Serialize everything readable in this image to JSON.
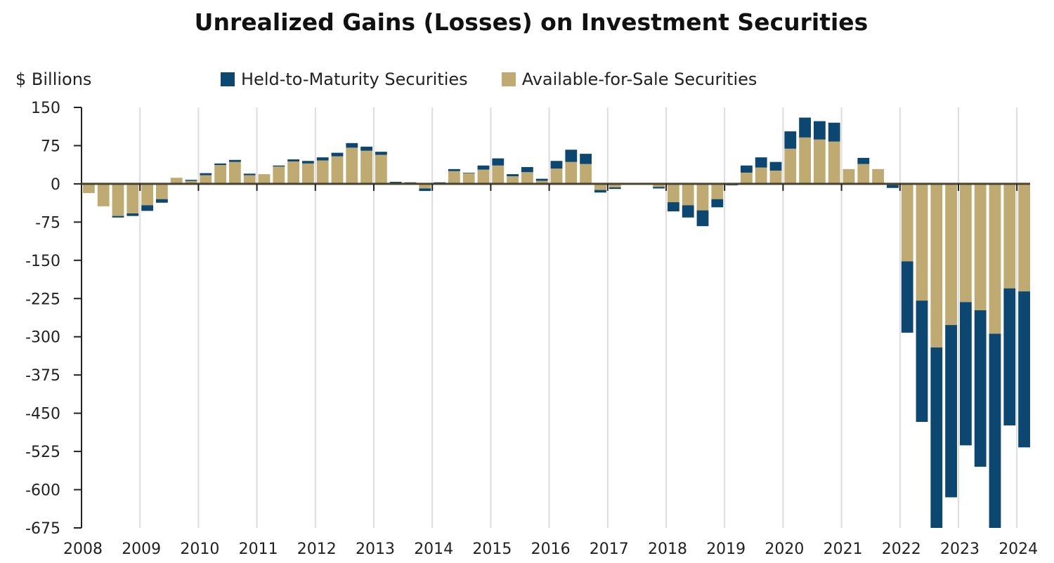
{
  "chart_data": {
    "type": "bar",
    "stacked": true,
    "title": "Unrealized Gains (Losses) on Investment Securities",
    "ylabel": "$ Billions",
    "xlabel": "",
    "ylim": [
      -675,
      150
    ],
    "yticks": [
      150,
      75,
      0,
      -75,
      -150,
      -225,
      -300,
      -375,
      -450,
      -525,
      -600,
      -675
    ],
    "xtick_labels": [
      "2008",
      "2009",
      "2010",
      "2011",
      "2012",
      "2013",
      "2014",
      "2015",
      "2016",
      "2017",
      "2018",
      "2019",
      "2020",
      "2021",
      "2022",
      "2023",
      "2024"
    ],
    "grid": "vertical year gridlines",
    "legend_position": "top",
    "frequency": "quarterly, starting 2008 Q1",
    "colors": {
      "htm": "#0b4770",
      "afs": "#bfab72",
      "axis": "#222222",
      "grid": "#dddddd"
    },
    "categories": [
      "2008Q1",
      "2008Q2",
      "2008Q3",
      "2008Q4",
      "2009Q1",
      "2009Q2",
      "2009Q3",
      "2009Q4",
      "2010Q1",
      "2010Q2",
      "2010Q3",
      "2010Q4",
      "2011Q1",
      "2011Q2",
      "2011Q3",
      "2011Q4",
      "2012Q1",
      "2012Q2",
      "2012Q3",
      "2012Q4",
      "2013Q1",
      "2013Q2",
      "2013Q3",
      "2013Q4",
      "2014Q1",
      "2014Q2",
      "2014Q3",
      "2014Q4",
      "2015Q1",
      "2015Q2",
      "2015Q3",
      "2015Q4",
      "2016Q1",
      "2016Q2",
      "2016Q3",
      "2016Q4",
      "2017Q1",
      "2017Q2",
      "2017Q3",
      "2017Q4",
      "2018Q1",
      "2018Q2",
      "2018Q3",
      "2018Q4",
      "2019Q1",
      "2019Q2",
      "2019Q3",
      "2019Q4",
      "2020Q1",
      "2020Q2",
      "2020Q3",
      "2020Q4",
      "2021Q1",
      "2021Q2",
      "2021Q3",
      "2021Q4",
      "2022Q1",
      "2022Q2",
      "2022Q3",
      "2022Q4",
      "2023Q1",
      "2023Q2",
      "2023Q3",
      "2023Q4",
      "2024Q1"
    ],
    "series": [
      {
        "name": "Available-for-Sale Securities",
        "key": "afs",
        "values": [
          -18,
          -44,
          -63,
          -58,
          -42,
          -30,
          12,
          6,
          17,
          37,
          43,
          17,
          19,
          34,
          44,
          40,
          46,
          54,
          71,
          65,
          57,
          2,
          2,
          -9,
          1,
          25,
          21,
          28,
          36,
          15,
          23,
          6,
          30,
          43,
          39,
          -12,
          -7,
          0,
          2,
          -6,
          -36,
          -42,
          -52,
          -30,
          -2,
          22,
          32,
          26,
          69,
          91,
          87,
          83,
          29,
          39,
          29,
          -2,
          -152,
          -229,
          -321,
          -277,
          -232,
          -248,
          -294,
          -205,
          -211
        ]
      },
      {
        "name": "Held-to-Maturity Securities",
        "key": "htm",
        "values": [
          0,
          0,
          -3,
          -5,
          -11,
          -7,
          0,
          2,
          4,
          3,
          4,
          3,
          0,
          2,
          4,
          5,
          6,
          7,
          9,
          8,
          6,
          2,
          1,
          -5,
          2,
          4,
          1,
          8,
          14,
          4,
          10,
          4,
          15,
          24,
          20,
          -5,
          -3,
          -1,
          0,
          -3,
          -18,
          -24,
          -31,
          -16,
          -1,
          14,
          20,
          17,
          34,
          39,
          36,
          37,
          0,
          12,
          0,
          -6,
          -140,
          -238,
          -369,
          -338,
          -281,
          -307,
          -390,
          -269,
          -306
        ]
      }
    ]
  },
  "legend": {
    "htm_label": "Held-to-Maturity Securities",
    "afs_label": "Available-for-Sale Securities"
  }
}
